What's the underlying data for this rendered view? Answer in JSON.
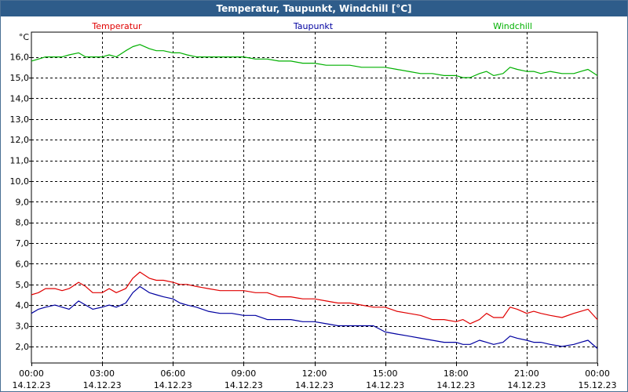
{
  "window": {
    "title": "Temperatur, Taupunkt, Windchill [°C]"
  },
  "chart_data": {
    "type": "line",
    "title": "Temperatur, Taupunkt, Windchill [°C]",
    "ylabel": "°C",
    "ylim": [
      1.2,
      17.2
    ],
    "y_ticks": [
      "16,0",
      "15,0",
      "14,0",
      "13,0",
      "12,0",
      "11,0",
      "10,0",
      "9,0",
      "8,0",
      "7,0",
      "6,0",
      "5,0",
      "4,0",
      "3,0",
      "2,0"
    ],
    "y_tick_values": [
      16,
      15,
      14,
      13,
      12,
      11,
      10,
      9,
      8,
      7,
      6,
      5,
      4,
      3,
      2
    ],
    "x_ticks": [
      {
        "time": "00:00",
        "date": "14.12.23"
      },
      {
        "time": "03:00",
        "date": "14.12.23"
      },
      {
        "time": "06:00",
        "date": "14.12.23"
      },
      {
        "time": "09:00",
        "date": "14.12.23"
      },
      {
        "time": "12:00",
        "date": "14.12.23"
      },
      {
        "time": "15:00",
        "date": "14.12.23"
      },
      {
        "time": "18:00",
        "date": "14.12.23"
      },
      {
        "time": "21:00",
        "date": "14.12.23"
      },
      {
        "time": "00:00",
        "date": "15.12.23"
      }
    ],
    "x_tick_hours": [
      0,
      3,
      6,
      9,
      12,
      15,
      18,
      21,
      24
    ],
    "grid": true,
    "legend_placement": "top",
    "series": [
      {
        "name": "Temperatur",
        "color": "#e00000",
        "x": [
          0,
          0.3,
          0.6,
          1.0,
          1.3,
          1.6,
          2.0,
          2.3,
          2.6,
          3.0,
          3.3,
          3.6,
          4.0,
          4.3,
          4.6,
          5.0,
          5.3,
          5.6,
          6.0,
          6.3,
          6.6,
          7.0,
          7.5,
          8.0,
          8.5,
          9.0,
          9.5,
          10.0,
          10.5,
          11.0,
          11.5,
          12.0,
          12.5,
          13.0,
          13.5,
          14.0,
          14.5,
          15.0,
          15.5,
          16.0,
          16.5,
          17.0,
          17.5,
          18.0,
          18.3,
          18.6,
          19.0,
          19.3,
          19.6,
          20.0,
          20.3,
          20.6,
          21.0,
          21.3,
          21.6,
          22.0,
          22.5,
          23.0,
          23.3,
          23.6,
          24.0
        ],
        "y": [
          4.5,
          4.6,
          4.8,
          4.8,
          4.7,
          4.8,
          5.1,
          4.9,
          4.6,
          4.6,
          4.8,
          4.6,
          4.8,
          5.3,
          5.6,
          5.3,
          5.2,
          5.2,
          5.1,
          5.0,
          5.0,
          4.9,
          4.8,
          4.7,
          4.7,
          4.7,
          4.6,
          4.6,
          4.4,
          4.4,
          4.3,
          4.3,
          4.2,
          4.1,
          4.1,
          4.0,
          3.9,
          3.9,
          3.7,
          3.6,
          3.5,
          3.3,
          3.3,
          3.2,
          3.3,
          3.1,
          3.3,
          3.6,
          3.4,
          3.4,
          3.9,
          3.8,
          3.6,
          3.7,
          3.6,
          3.5,
          3.4,
          3.6,
          3.7,
          3.8,
          3.3
        ]
      },
      {
        "name": "Taupunkt",
        "color": "#0000a0",
        "x": [
          0,
          0.3,
          0.6,
          1.0,
          1.3,
          1.6,
          2.0,
          2.3,
          2.6,
          3.0,
          3.3,
          3.6,
          4.0,
          4.3,
          4.6,
          5.0,
          5.3,
          5.6,
          6.0,
          6.3,
          6.6,
          7.0,
          7.5,
          8.0,
          8.5,
          9.0,
          9.5,
          10.0,
          10.5,
          11.0,
          11.5,
          12.0,
          12.5,
          13.0,
          13.5,
          14.0,
          14.5,
          15.0,
          15.5,
          16.0,
          16.5,
          17.0,
          17.5,
          18.0,
          18.3,
          18.6,
          19.0,
          19.3,
          19.6,
          20.0,
          20.3,
          20.6,
          21.0,
          21.3,
          21.6,
          22.0,
          22.5,
          23.0,
          23.3,
          23.6,
          24.0
        ],
        "y": [
          3.6,
          3.8,
          3.9,
          4.0,
          3.9,
          3.8,
          4.2,
          4.0,
          3.8,
          3.9,
          4.0,
          3.9,
          4.1,
          4.6,
          4.9,
          4.6,
          4.5,
          4.4,
          4.3,
          4.1,
          4.0,
          3.9,
          3.7,
          3.6,
          3.6,
          3.5,
          3.5,
          3.3,
          3.3,
          3.3,
          3.2,
          3.2,
          3.1,
          3.0,
          3.0,
          3.0,
          3.0,
          2.7,
          2.6,
          2.5,
          2.4,
          2.3,
          2.2,
          2.2,
          2.1,
          2.1,
          2.3,
          2.2,
          2.1,
          2.2,
          2.5,
          2.4,
          2.3,
          2.2,
          2.2,
          2.1,
          2.0,
          2.1,
          2.2,
          2.3,
          1.9
        ]
      },
      {
        "name": "Windchill",
        "color": "#00b000",
        "x": [
          0,
          0.3,
          0.6,
          1.0,
          1.3,
          1.6,
          2.0,
          2.3,
          2.6,
          3.0,
          3.3,
          3.6,
          4.0,
          4.3,
          4.6,
          5.0,
          5.3,
          5.6,
          6.0,
          6.3,
          6.6,
          7.0,
          7.5,
          8.0,
          8.5,
          9.0,
          9.5,
          10.0,
          10.5,
          11.0,
          11.5,
          12.0,
          12.5,
          13.0,
          13.5,
          14.0,
          14.5,
          15.0,
          15.5,
          16.0,
          16.5,
          17.0,
          17.5,
          18.0,
          18.3,
          18.6,
          19.0,
          19.3,
          19.6,
          20.0,
          20.3,
          20.6,
          21.0,
          21.3,
          21.6,
          22.0,
          22.5,
          23.0,
          23.3,
          23.6,
          24.0
        ],
        "y": [
          15.8,
          15.9,
          16.0,
          16.0,
          16.0,
          16.1,
          16.2,
          16.0,
          16.0,
          16.0,
          16.1,
          16.0,
          16.3,
          16.5,
          16.6,
          16.4,
          16.3,
          16.3,
          16.2,
          16.2,
          16.1,
          16.0,
          16.0,
          16.0,
          16.0,
          16.0,
          15.9,
          15.9,
          15.8,
          15.8,
          15.7,
          15.7,
          15.6,
          15.6,
          15.6,
          15.5,
          15.5,
          15.5,
          15.4,
          15.3,
          15.2,
          15.2,
          15.1,
          15.1,
          15.0,
          15.0,
          15.2,
          15.3,
          15.1,
          15.2,
          15.5,
          15.4,
          15.3,
          15.3,
          15.2,
          15.3,
          15.2,
          15.2,
          15.3,
          15.4,
          15.1
        ]
      }
    ]
  }
}
